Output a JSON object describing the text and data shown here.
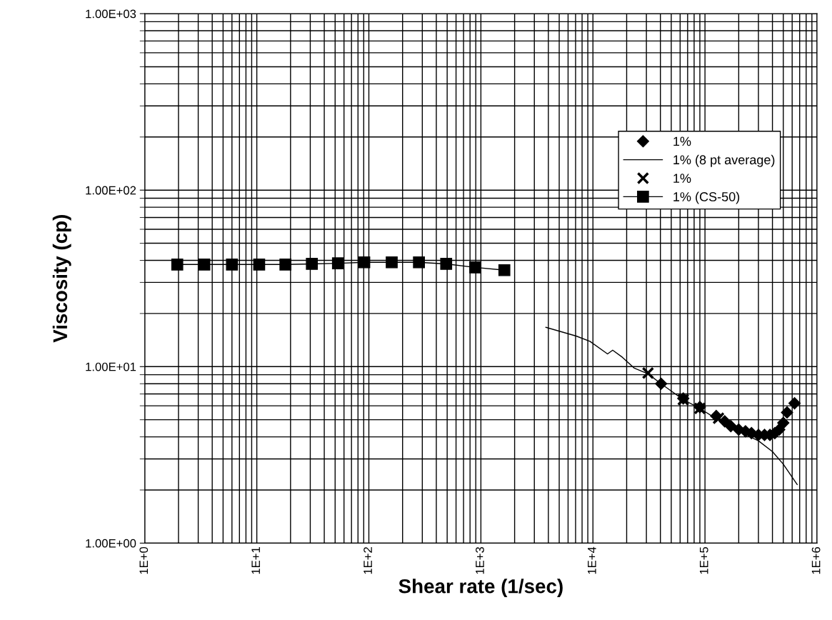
{
  "chart_data": {
    "type": "scatter",
    "xlabel": "Shear rate (1/sec)",
    "ylabel": "Viscosity (cp)",
    "log": "xy",
    "xlim": [
      1,
      1000000
    ],
    "ylim": [
      1,
      1000
    ],
    "xticks": [
      {
        "value": 1,
        "label": "1E+0"
      },
      {
        "value": 10,
        "label": "1E+1"
      },
      {
        "value": 100,
        "label": "1E+2"
      },
      {
        "value": 1000,
        "label": "1E+3"
      },
      {
        "value": 10000,
        "label": "1E+4"
      },
      {
        "value": 100000,
        "label": "1E+5"
      },
      {
        "value": 1000000,
        "label": "1E+6"
      }
    ],
    "yticks": [
      {
        "value": 1,
        "label": "1.00E+00"
      },
      {
        "value": 10,
        "label": "1.00E+01"
      },
      {
        "value": 100,
        "label": "1.00E+02"
      },
      {
        "value": 1000,
        "label": "1.00E+03"
      }
    ],
    "grid": true,
    "legend": "top right",
    "series": [
      {
        "name": "1%",
        "marker": "diamond",
        "color": "#000000",
        "x": [
          40600,
          64000,
          90000,
          126000,
          150000,
          170000,
          200000,
          230000,
          260000,
          300000,
          340000,
          380000,
          420000,
          460000,
          500000,
          540000,
          630000
        ],
        "values": [
          8.0,
          6.6,
          5.9,
          5.25,
          4.9,
          4.6,
          4.4,
          4.3,
          4.2,
          4.1,
          4.1,
          4.1,
          4.2,
          4.4,
          4.8,
          5.5,
          6.2
        ]
      },
      {
        "name": "1% (8 pt average)",
        "type": "line",
        "marker": "none",
        "color": "#000000",
        "x": [
          3800,
          7100,
          9400,
          13500,
          15000,
          18300,
          23400,
          31000,
          40600,
          64000,
          90000,
          130000,
          200000,
          300000,
          400000,
          500000,
          665000
        ],
        "values": [
          16.7,
          14.9,
          13.9,
          11.8,
          12.4,
          11.3,
          9.8,
          9.1,
          8.0,
          6.5,
          5.8,
          5.0,
          4.3,
          3.8,
          3.3,
          2.8,
          2.15
        ]
      },
      {
        "name": "1%",
        "marker": "cross",
        "color": "#000000",
        "x": [
          31000,
          64000,
          90000,
          132000
        ],
        "values": [
          9.2,
          6.5,
          5.8,
          5.1
        ]
      },
      {
        "name": "1% (CS-50)",
        "type": "line",
        "marker": "square",
        "color": "#000000",
        "x": [
          1.95,
          3.4,
          6,
          10.5,
          18,
          31,
          53,
          91,
          160,
          280,
          490,
          890,
          1620
        ],
        "values": [
          37.9,
          37.9,
          37.9,
          37.9,
          37.9,
          38.2,
          38.5,
          39,
          39,
          39,
          38.2,
          36.5,
          35.2
        ]
      }
    ]
  }
}
